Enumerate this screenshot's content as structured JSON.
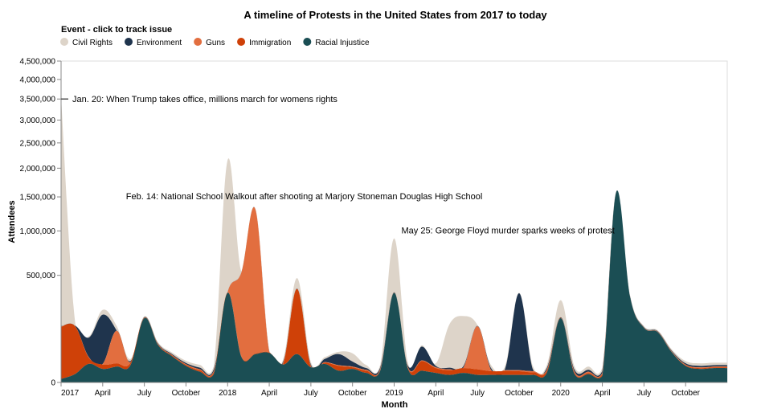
{
  "chart_data": {
    "type": "area",
    "stacked": true,
    "title": "A timeline of Protests in the United States from 2017 to today",
    "xlabel": "Month",
    "ylabel": "Attendees",
    "legend_title": "Event - click to track issue",
    "legend_position": "top-left",
    "y_scale": "sqrt",
    "ylim": [
      0,
      4500000
    ],
    "xlim": [
      "2017-01",
      "2021-01"
    ],
    "grid": false,
    "x_ticks": [
      {
        "date": "2017-01",
        "label": "2017"
      },
      {
        "date": "2017-04",
        "label": "April"
      },
      {
        "date": "2017-07",
        "label": "July"
      },
      {
        "date": "2017-10",
        "label": "October"
      },
      {
        "date": "2018-01",
        "label": "2018"
      },
      {
        "date": "2018-04",
        "label": "April"
      },
      {
        "date": "2018-07",
        "label": "July"
      },
      {
        "date": "2018-10",
        "label": "October"
      },
      {
        "date": "2019-01",
        "label": "2019"
      },
      {
        "date": "2019-04",
        "label": "April"
      },
      {
        "date": "2019-07",
        "label": "July"
      },
      {
        "date": "2019-10",
        "label": "October"
      },
      {
        "date": "2020-01",
        "label": "2020"
      },
      {
        "date": "2020-04",
        "label": "April"
      },
      {
        "date": "2020-07",
        "label": "July"
      },
      {
        "date": "2020-10",
        "label": "October"
      }
    ],
    "y_ticks": [
      {
        "value": 0,
        "label": "0"
      },
      {
        "value": 500000,
        "label": "500,000"
      },
      {
        "value": 1000000,
        "label": "1,000,000"
      },
      {
        "value": 1500000,
        "label": "1,500,000"
      },
      {
        "value": 2000000,
        "label": "2,000,000"
      },
      {
        "value": 2500000,
        "label": "2,500,000"
      },
      {
        "value": 3000000,
        "label": "3,000,000"
      },
      {
        "value": 3500000,
        "label": "3,500,000"
      },
      {
        "value": 4000000,
        "label": "4,000,000"
      },
      {
        "value": 4500000,
        "label": "4,500,000"
      }
    ],
    "x": [
      "2017-01",
      "2017-02",
      "2017-03",
      "2017-04",
      "2017-05",
      "2017-06",
      "2017-07",
      "2017-08",
      "2017-09",
      "2017-10",
      "2017-11",
      "2017-12",
      "2018-01",
      "2018-02",
      "2018-03",
      "2018-04",
      "2018-05",
      "2018-06",
      "2018-07",
      "2018-08",
      "2018-09",
      "2018-10",
      "2018-11",
      "2018-12",
      "2019-01",
      "2019-02",
      "2019-03",
      "2019-04",
      "2019-05",
      "2019-06",
      "2019-07",
      "2019-08",
      "2019-09",
      "2019-10",
      "2019-11",
      "2019-12",
      "2020-01",
      "2020-02",
      "2020-03",
      "2020-04",
      "2020-05",
      "2020-06",
      "2020-07",
      "2020-08",
      "2020-09",
      "2020-10",
      "2020-11",
      "2020-12",
      "2021-01"
    ],
    "series": [
      {
        "name": "Racial Injustice",
        "color": "#1b4e54",
        "values": [
          500,
          3000,
          15000,
          8000,
          11000,
          13000,
          180000,
          60000,
          30000,
          12000,
          5000,
          3000,
          350000,
          28000,
          35000,
          38000,
          14000,
          35000,
          10000,
          15000,
          6000,
          8000,
          4000,
          6000,
          350000,
          8000,
          6000,
          4000,
          2500,
          4000,
          2500,
          2500,
          2500,
          2500,
          2500,
          4000,
          180000,
          3000,
          3000,
          2000,
          1580000,
          320000,
          130000,
          110000,
          40000,
          12000,
          8000,
          9000,
          9000
        ]
      },
      {
        "name": "Immigration",
        "color": "#cf4108",
        "values": [
          135000,
          135000,
          12000,
          6000,
          5000,
          4000,
          3000,
          2500,
          2000,
          1500,
          1500,
          1500,
          2000,
          1500,
          1500,
          1500,
          1000,
          346000,
          1000,
          2000,
          6000,
          2000,
          2000,
          1000,
          1000,
          1000,
          14000,
          5000,
          4000,
          5000,
          5000,
          3000,
          3000,
          3000,
          2000,
          2000,
          2000,
          1000,
          1000,
          1000,
          1000,
          1000,
          1000,
          1000,
          1000,
          1000,
          1000,
          1000,
          1000
        ]
      },
      {
        "name": "Guns",
        "color": "#e26e3f",
        "values": [
          1000,
          1000,
          1000,
          1000,
          100000,
          1000,
          1000,
          1000,
          1000,
          1000,
          1000,
          1000,
          1000,
          500000,
          1270000,
          1000,
          2000,
          1000,
          1000,
          1000,
          1000,
          1000,
          1000,
          1000,
          1000,
          1000,
          1000,
          1000,
          1000,
          1000,
          130000,
          1000,
          1000,
          1000,
          1000,
          1000,
          1000,
          1000,
          1000,
          1000,
          1000,
          1000,
          1000,
          1000,
          1000,
          1000,
          1000,
          1000,
          1000
        ]
      },
      {
        "name": "Environment",
        "color": "#1f344d",
        "values": [
          2000,
          2000,
          60000,
          185000,
          2000,
          2000,
          2000,
          2000,
          2000,
          2000,
          2000,
          2000,
          2000,
          2000,
          2000,
          2000,
          2000,
          2000,
          2000,
          6000,
          22000,
          8000,
          2000,
          2000,
          2000,
          2000,
          35000,
          2000,
          2000,
          2000,
          2000,
          2000,
          2000,
          340000,
          2000,
          2000,
          2000,
          2000,
          2000,
          2000,
          2000,
          2000,
          2000,
          2000,
          2000,
          2000,
          2000,
          2000,
          2000
        ]
      },
      {
        "name": "Civil Rights",
        "color": "#ddd4c9",
        "values": [
          3400000,
          25000,
          5000,
          30000,
          22000,
          4000,
          4000,
          4000,
          4000,
          4000,
          4000,
          4000,
          1800000,
          4000,
          4000,
          4000,
          4000,
          90000,
          4000,
          4000,
          6000,
          18000,
          4000,
          4000,
          550000,
          4000,
          4000,
          4000,
          140000,
          180000,
          4000,
          4000,
          4000,
          4000,
          4000,
          4000,
          110000,
          4000,
          4000,
          4000,
          4000,
          4000,
          4000,
          4000,
          4000,
          4000,
          4000,
          4000,
          4000
        ]
      }
    ],
    "annotations": [
      {
        "date": "2017-01",
        "value": 3500000,
        "text": "Jan. 20: When Trump takes office, millions march for womens rights"
      },
      {
        "date": "2018-02",
        "value": 1500000,
        "text": "Feb. 14: National School Walkout after shooting at Marjory Stoneman Douglas High School"
      },
      {
        "date": "2020-05",
        "value": 1000000,
        "text": "May 25: George Floyd murder sparks weeks of protest"
      }
    ]
  }
}
